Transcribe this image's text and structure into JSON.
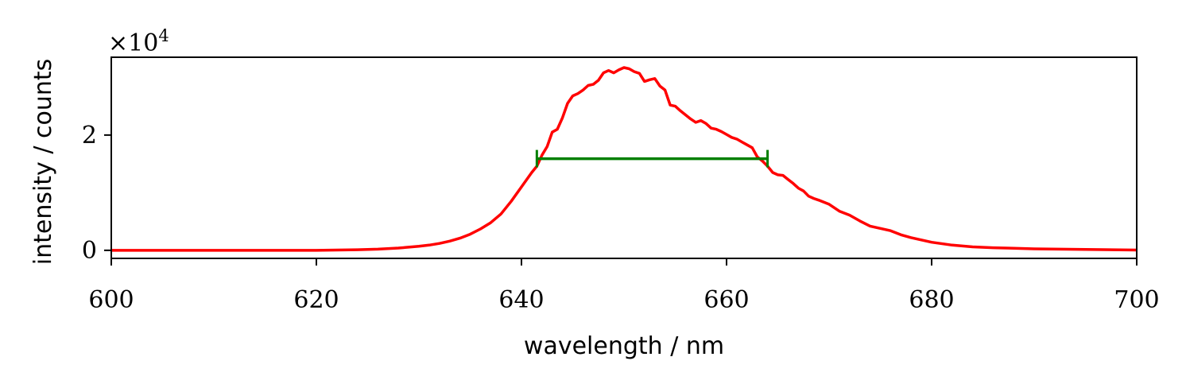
{
  "chart_data": {
    "type": "line",
    "xlabel": "wavelength / nm",
    "ylabel": "intensity / counts",
    "xlim": [
      600,
      700
    ],
    "ylim": [
      -1400,
      33500
    ],
    "x_ticks": [
      600,
      620,
      640,
      660,
      680,
      700
    ],
    "y_ticks": [
      0,
      2
    ],
    "y_multiplier": {
      "base": "×10",
      "exponent": "4"
    },
    "grid": false,
    "series": [
      {
        "color": "#ff0000",
        "x": [
          600,
          605,
          610,
          615,
          620,
          622,
          624,
          626,
          628,
          629,
          630,
          631,
          632,
          633,
          634,
          635,
          636,
          637,
          638,
          639,
          640,
          641,
          641.5,
          642,
          642.5,
          643,
          643.5,
          644,
          644.5,
          645,
          645.5,
          646,
          646.5,
          647,
          647.5,
          648,
          648.5,
          649,
          649.5,
          650,
          650.5,
          651,
          651.5,
          652,
          652.5,
          653,
          653.5,
          654,
          654.5,
          655,
          655.5,
          656,
          656.5,
          657,
          657.5,
          658,
          658.5,
          659,
          659.5,
          660,
          660.5,
          661,
          661.5,
          662,
          662.5,
          663,
          663.5,
          664,
          664.5,
          665,
          665.5,
          666,
          666.5,
          667,
          667.5,
          668,
          668.5,
          669,
          670,
          671,
          672,
          673,
          674,
          675,
          676,
          677,
          678,
          679,
          680,
          682,
          684,
          686,
          688,
          690,
          695,
          700
        ],
        "y": [
          0,
          0,
          0,
          0,
          0,
          50,
          100,
          200,
          400,
          550,
          700,
          900,
          1200,
          1600,
          2100,
          2800,
          3700,
          4800,
          6300,
          8500,
          11000,
          13500,
          14600,
          16500,
          18000,
          20500,
          21000,
          23000,
          25500,
          26800,
          27200,
          27800,
          28600,
          28800,
          29500,
          30800,
          31200,
          30800,
          31300,
          31700,
          31500,
          31000,
          30700,
          29300,
          29600,
          29800,
          28500,
          27800,
          25200,
          25000,
          24200,
          23500,
          22800,
          22200,
          22500,
          22000,
          21200,
          21000,
          20600,
          20100,
          19600,
          19300,
          18800,
          18300,
          17800,
          16200,
          15500,
          14600,
          13500,
          13100,
          13000,
          12300,
          11600,
          10800,
          10300,
          9400,
          9000,
          8700,
          8000,
          6800,
          6100,
          5100,
          4200,
          3800,
          3400,
          2700,
          2200,
          1800,
          1400,
          900,
          600,
          450,
          350,
          250,
          150,
          50
        ]
      },
      {
        "color": "#008000",
        "x": [
          641.5,
          664.0
        ],
        "y": [
          15900,
          15900
        ]
      }
    ]
  }
}
